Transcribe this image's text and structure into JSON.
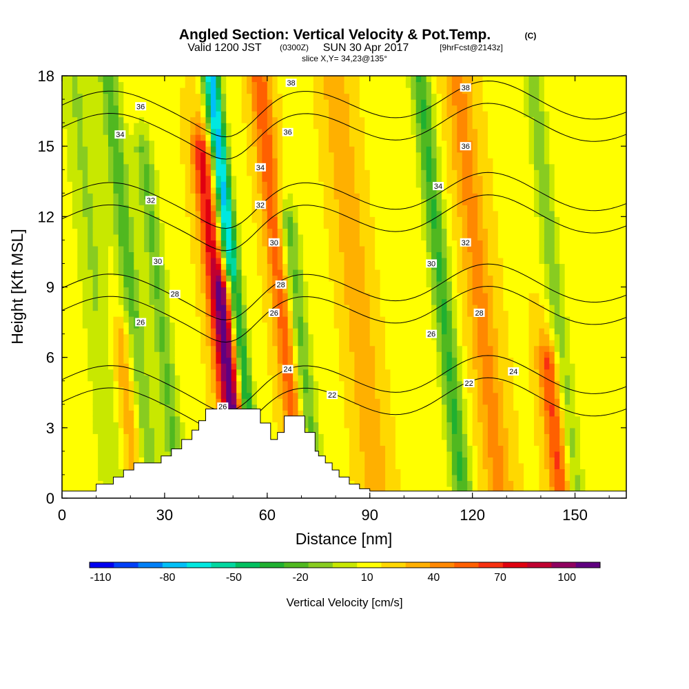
{
  "chart_data": {
    "type": "heatmap",
    "title": "Angled Section: Vertical Velocity & Pot.Temp.",
    "title_suffix": "(C)",
    "subtitle": {
      "valid": "Valid 1200 JST",
      "utc": "(0300Z)",
      "date": "SUN 30 Apr 2017",
      "fcst": "[9hrFcst@2143z]"
    },
    "slice": "slice X,Y= 34,23@135°",
    "xlabel": "Distance [nm]",
    "ylabel": "Height [Kft MSL]",
    "xlim": [
      0,
      165
    ],
    "ylim": [
      0,
      18
    ],
    "xticks": [
      "0",
      "30",
      "60",
      "90",
      "120",
      "150"
    ],
    "yticks": [
      "0",
      "3",
      "6",
      "9",
      "12",
      "15",
      "18"
    ],
    "colorbar": {
      "label": "Vertical Velocity [cm/s]",
      "ticks": [
        "-110",
        "-80",
        "-50",
        "-20",
        "10",
        "40",
        "70",
        "100"
      ],
      "colors": [
        "#0000f0",
        "#0040f8",
        "#0080f8",
        "#00c0f8",
        "#00e8e0",
        "#00d8a0",
        "#00c060",
        "#20b030",
        "#50b820",
        "#88cc20",
        "#c8e800",
        "#ffff00",
        "#ffd800",
        "#ffb000",
        "#ff8800",
        "#ff6000",
        "#f83010",
        "#e00010",
        "#c00030",
        "#900060",
        "#600080"
      ]
    },
    "velocity_features": [
      {
        "x": 12,
        "ztop": 18,
        "w": 5,
        "v": -20
      },
      {
        "x": 22,
        "ztop": 18,
        "w": 3,
        "v": -35
      },
      {
        "x": 30,
        "ztop": 15,
        "w": 3,
        "v": -30
      },
      {
        "x": 47,
        "ztop": 15,
        "w": 3,
        "v": 55
      },
      {
        "x": 52,
        "ztop": 18,
        "w": 2.5,
        "v": -85
      },
      {
        "x": 50,
        "ztop": 9,
        "w": 3,
        "v": 70
      },
      {
        "x": 66,
        "ztop": 18,
        "w": 3,
        "v": 40
      },
      {
        "x": 70,
        "ztop": 12,
        "w": 3,
        "v": -35
      },
      {
        "x": 88,
        "ztop": 18,
        "w": 4,
        "v": 20
      },
      {
        "x": 113,
        "ztop": 18,
        "w": 3,
        "v": -40
      },
      {
        "x": 124,
        "ztop": 18,
        "w": 4,
        "v": 25
      },
      {
        "x": 142,
        "ztop": 6,
        "w": 3,
        "v": 45
      },
      {
        "x": 146,
        "ztop": 18,
        "w": 3,
        "v": -25
      },
      {
        "x": 18,
        "ztop": 7,
        "w": 4,
        "v": 25
      }
    ],
    "theta_contours": [
      22,
      24,
      26,
      28,
      30,
      32,
      34,
      36,
      38
    ],
    "contour_labels": [
      {
        "text": "36",
        "x": 23,
        "y": 16.7
      },
      {
        "text": "34",
        "x": 17,
        "y": 15.5
      },
      {
        "text": "32",
        "x": 26,
        "y": 12.7
      },
      {
        "text": "30",
        "x": 28,
        "y": 10.1
      },
      {
        "text": "28",
        "x": 33,
        "y": 8.7
      },
      {
        "text": "26",
        "x": 23,
        "y": 7.5
      },
      {
        "text": "38",
        "x": 67,
        "y": 17.7
      },
      {
        "text": "36",
        "x": 66,
        "y": 15.6
      },
      {
        "text": "34",
        "x": 58,
        "y": 14.1
      },
      {
        "text": "32",
        "x": 58,
        "y": 12.5
      },
      {
        "text": "30",
        "x": 62,
        "y": 10.9
      },
      {
        "text": "28",
        "x": 64,
        "y": 9.1
      },
      {
        "text": "26",
        "x": 62,
        "y": 7.9
      },
      {
        "text": "26",
        "x": 47,
        "y": 3.9
      },
      {
        "text": "24",
        "x": 66,
        "y": 5.5
      },
      {
        "text": "22",
        "x": 79,
        "y": 4.4
      },
      {
        "text": "38",
        "x": 118,
        "y": 17.5
      },
      {
        "text": "36",
        "x": 118,
        "y": 15.0
      },
      {
        "text": "34",
        "x": 110,
        "y": 13.3
      },
      {
        "text": "32",
        "x": 118,
        "y": 10.9
      },
      {
        "text": "30",
        "x": 108,
        "y": 10.0
      },
      {
        "text": "28",
        "x": 122,
        "y": 7.9
      },
      {
        "text": "26",
        "x": 108,
        "y": 7.0
      },
      {
        "text": "24",
        "x": 132,
        "y": 5.4
      },
      {
        "text": "22",
        "x": 119,
        "y": 4.9
      }
    ],
    "terrain": {
      "x": [
        0,
        10,
        10,
        15,
        15,
        18,
        18,
        21,
        21,
        29,
        29,
        32,
        32,
        35,
        35,
        38,
        38,
        40,
        40,
        42,
        42,
        58,
        58,
        61,
        61,
        63,
        63,
        65,
        65,
        71,
        71,
        74,
        74,
        75,
        75,
        77,
        77,
        79,
        79,
        81,
        81,
        84,
        84,
        87,
        87,
        90,
        90,
        165
      ],
      "y": [
        0.3,
        0.3,
        0.6,
        0.6,
        0.9,
        0.9,
        1.2,
        1.2,
        1.5,
        1.5,
        1.8,
        1.8,
        2.1,
        2.1,
        2.5,
        2.5,
        2.9,
        2.9,
        3.3,
        3.3,
        3.8,
        3.8,
        3.2,
        3.2,
        2.5,
        2.5,
        2.8,
        2.8,
        3.5,
        3.5,
        2.8,
        2.8,
        2.0,
        2.0,
        1.8,
        1.8,
        1.5,
        1.5,
        1.2,
        1.2,
        0.9,
        0.9,
        0.6,
        0.6,
        0.4,
        0.4,
        0.3,
        0.3
      ]
    }
  }
}
